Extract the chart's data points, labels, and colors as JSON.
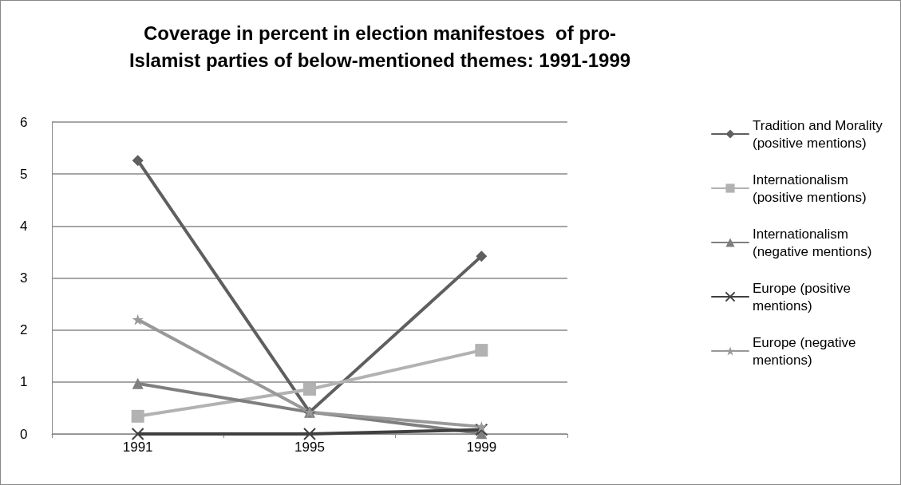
{
  "chart_data": {
    "type": "line",
    "title": "Coverage in percent in election manifestoes  of pro-\nIslamist parties of below-mentioned themes: 1991-1999",
    "categories": [
      "1991",
      "1995",
      "1999"
    ],
    "series": [
      {
        "name": "Tradition and Morality (positive mentions)",
        "color": "#5f5f5f",
        "marker": "diamond",
        "values": [
          5.26,
          0.42,
          3.42
        ]
      },
      {
        "name": "Internationalism (positive mentions)",
        "color": "#b2b2b2",
        "marker": "square",
        "values": [
          0.34,
          0.86,
          1.61
        ]
      },
      {
        "name": "Internationalism (negative mentions)",
        "color": "#7f7f7f",
        "marker": "triangle",
        "values": [
          0.97,
          0.42,
          0.01
        ]
      },
      {
        "name": "Europe (positive mentions)",
        "color": "#404040",
        "marker": "cross",
        "values": [
          0,
          0,
          0.08
        ]
      },
      {
        "name": "Europe (negative mentions)",
        "color": "#999999",
        "marker": "star",
        "values": [
          2.2,
          0.42,
          0.14
        ]
      }
    ],
    "ylim": [
      0,
      6
    ],
    "yticks": [
      0,
      1,
      2,
      3,
      4,
      5,
      6
    ],
    "grid": "y",
    "legend": "right",
    "line_style": "solid"
  }
}
